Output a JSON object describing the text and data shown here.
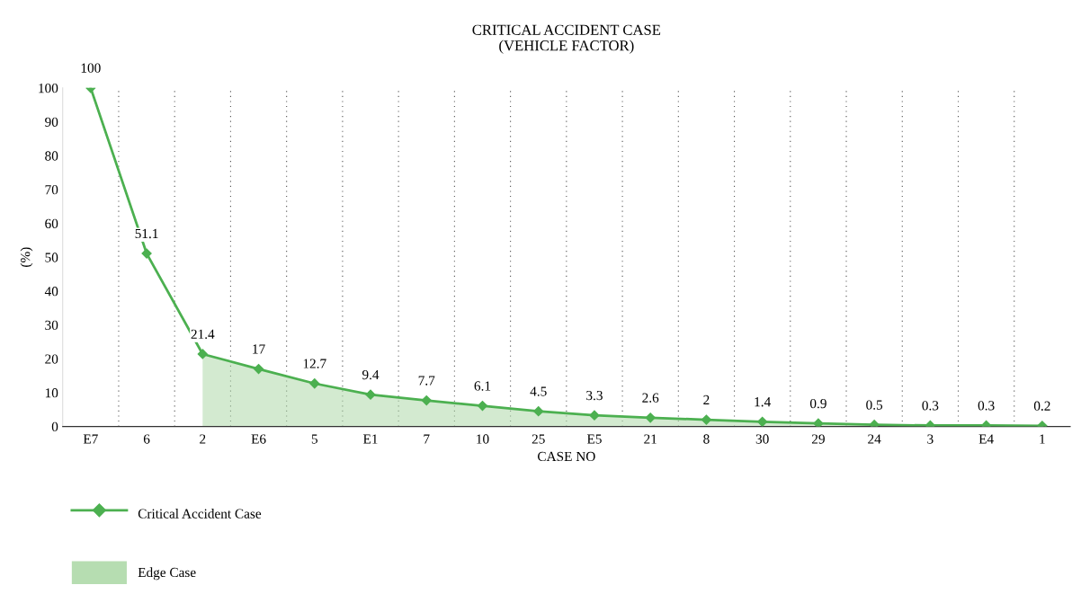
{
  "chart_data": {
    "type": "line",
    "title": "CRITICAL ACCIDENT CASE\n(VEHICLE FACTOR)",
    "xlabel": "CASE NO",
    "ylabel": "(%)",
    "categories": [
      "E7",
      "6",
      "2",
      "E6",
      "5",
      "E1",
      "7",
      "10",
      "25",
      "E5",
      "21",
      "8",
      "30",
      "29",
      "24",
      "3",
      "E4",
      "1"
    ],
    "series": [
      {
        "name": "Critical Accident Case",
        "color": "#4cb050",
        "values": [
          100,
          51.1,
          21.4,
          17,
          12.7,
          9.4,
          7.7,
          6.1,
          4.5,
          3.3,
          2.6,
          2,
          1.4,
          0.9,
          0.5,
          0.3,
          0.3,
          0.2
        ],
        "data_labels": true,
        "marker": "diamond"
      },
      {
        "name": "Edge Case",
        "type": "area",
        "color": "#aed9a9",
        "values": [
          null,
          null,
          21.4,
          17,
          12.7,
          9.4,
          7.7,
          6.1,
          4.5,
          3.3,
          2.6,
          2,
          1.4,
          0.9,
          0.5,
          0.3,
          0.3,
          null
        ]
      }
    ],
    "ylim": [
      0,
      100
    ],
    "yticks": [
      0,
      10,
      20,
      30,
      40,
      50,
      60,
      70,
      80,
      90,
      100
    ],
    "grid": "x",
    "legend": "bottom",
    "line_style": "solid"
  }
}
